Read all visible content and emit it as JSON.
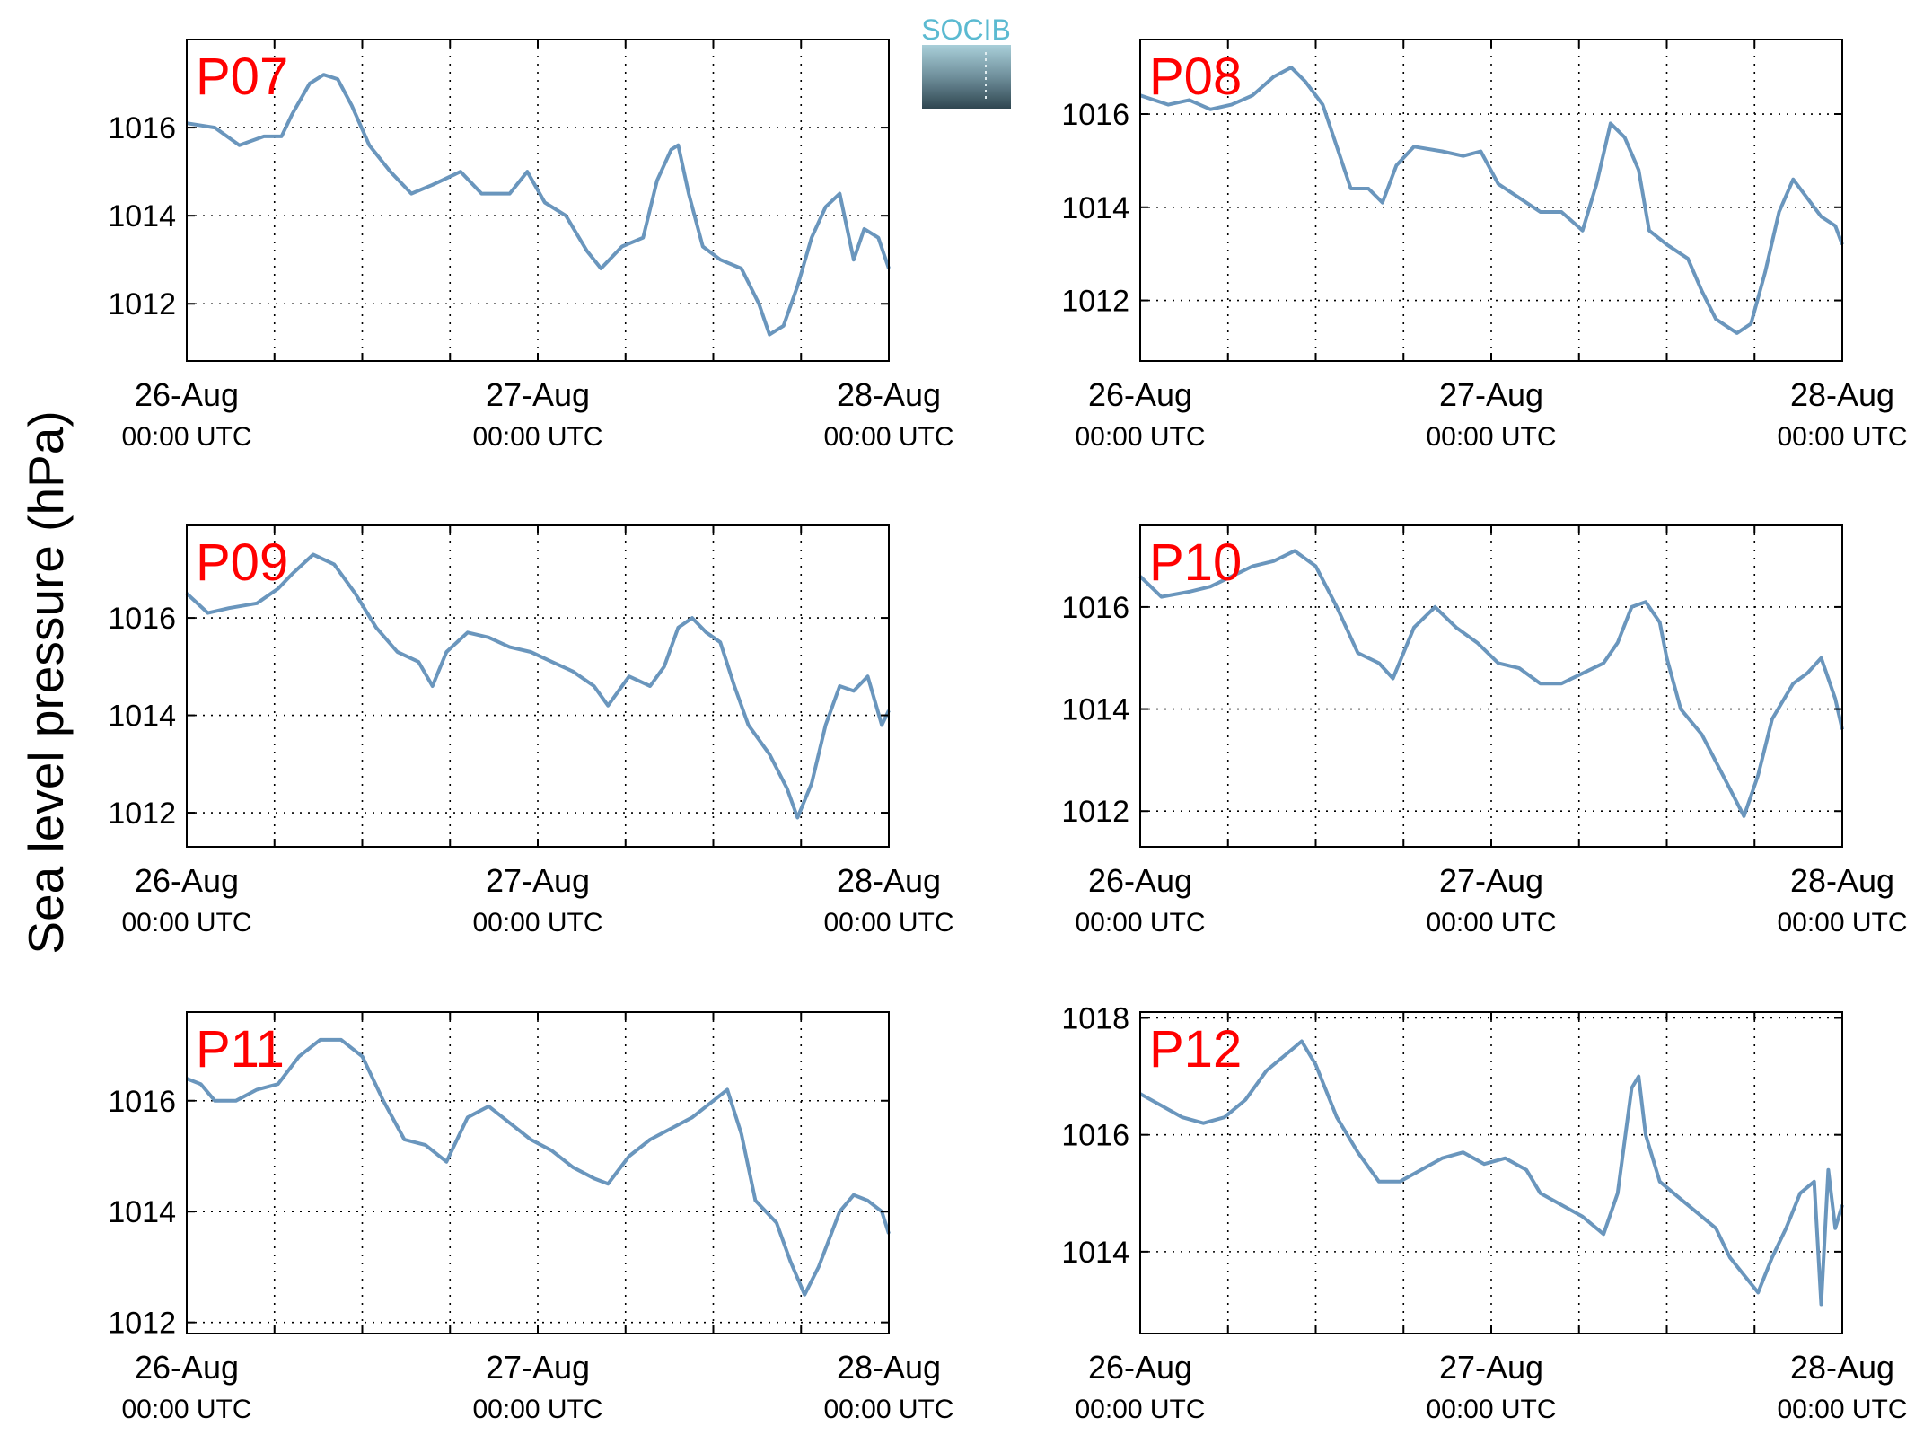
{
  "figure": {
    "ylabel": "Sea level pressure (hPa)",
    "logo_text": "SOCIB",
    "line_color": "#6a96bd",
    "panel_label_color": "#ff0000"
  },
  "chart_data": [
    {
      "type": "line",
      "panel": "P07",
      "x_ticks": [
        {
          "day": 0,
          "line1": "26-Aug",
          "line2": "00:00 UTC"
        },
        {
          "day": 1,
          "line1": "27-Aug",
          "line2": "00:00 UTC"
        },
        {
          "day": 2,
          "line1": "28-Aug",
          "line2": "00:00 UTC"
        }
      ],
      "xlim": [
        0,
        2
      ],
      "ylim": [
        1010.7,
        1018.0
      ],
      "yticks": [
        1012,
        1014,
        1016
      ],
      "grid": true,
      "points": [
        [
          0.0,
          1016.1
        ],
        [
          0.08,
          1016.0
        ],
        [
          0.15,
          1015.6
        ],
        [
          0.22,
          1015.8
        ],
        [
          0.27,
          1015.8
        ],
        [
          0.3,
          1016.3
        ],
        [
          0.35,
          1017.0
        ],
        [
          0.39,
          1017.2
        ],
        [
          0.43,
          1017.1
        ],
        [
          0.47,
          1016.5
        ],
        [
          0.52,
          1015.6
        ],
        [
          0.58,
          1015.0
        ],
        [
          0.64,
          1014.5
        ],
        [
          0.7,
          1014.7
        ],
        [
          0.78,
          1015.0
        ],
        [
          0.84,
          1014.5
        ],
        [
          0.92,
          1014.5
        ],
        [
          0.97,
          1015.0
        ],
        [
          1.02,
          1014.3
        ],
        [
          1.08,
          1014.0
        ],
        [
          1.14,
          1013.2
        ],
        [
          1.18,
          1012.8
        ],
        [
          1.24,
          1013.3
        ],
        [
          1.3,
          1013.5
        ],
        [
          1.34,
          1014.8
        ],
        [
          1.38,
          1015.5
        ],
        [
          1.4,
          1015.6
        ],
        [
          1.43,
          1014.5
        ],
        [
          1.47,
          1013.3
        ],
        [
          1.52,
          1013.0
        ],
        [
          1.58,
          1012.8
        ],
        [
          1.63,
          1012.0
        ],
        [
          1.66,
          1011.3
        ],
        [
          1.7,
          1011.5
        ],
        [
          1.74,
          1012.4
        ],
        [
          1.78,
          1013.5
        ],
        [
          1.82,
          1014.2
        ],
        [
          1.86,
          1014.5
        ],
        [
          1.9,
          1013.0
        ],
        [
          1.93,
          1013.7
        ],
        [
          1.97,
          1013.5
        ],
        [
          2.0,
          1012.8
        ]
      ]
    },
    {
      "type": "line",
      "panel": "P08",
      "x_ticks": [
        {
          "day": 0,
          "line1": "26-Aug",
          "line2": "00:00 UTC"
        },
        {
          "day": 1,
          "line1": "27-Aug",
          "line2": "00:00 UTC"
        },
        {
          "day": 2,
          "line1": "28-Aug",
          "line2": "00:00 UTC"
        }
      ],
      "xlim": [
        0,
        2
      ],
      "ylim": [
        1010.7,
        1017.6
      ],
      "yticks": [
        1012,
        1014,
        1016
      ],
      "grid": true,
      "points": [
        [
          0.0,
          1016.4
        ],
        [
          0.08,
          1016.2
        ],
        [
          0.14,
          1016.3
        ],
        [
          0.2,
          1016.1
        ],
        [
          0.26,
          1016.2
        ],
        [
          0.32,
          1016.4
        ],
        [
          0.38,
          1016.8
        ],
        [
          0.43,
          1017.0
        ],
        [
          0.47,
          1016.7
        ],
        [
          0.52,
          1016.2
        ],
        [
          0.56,
          1015.3
        ],
        [
          0.6,
          1014.4
        ],
        [
          0.65,
          1014.4
        ],
        [
          0.69,
          1014.1
        ],
        [
          0.73,
          1014.9
        ],
        [
          0.78,
          1015.3
        ],
        [
          0.86,
          1015.2
        ],
        [
          0.92,
          1015.1
        ],
        [
          0.97,
          1015.2
        ],
        [
          1.02,
          1014.5
        ],
        [
          1.08,
          1014.2
        ],
        [
          1.14,
          1013.9
        ],
        [
          1.2,
          1013.9
        ],
        [
          1.26,
          1013.5
        ],
        [
          1.3,
          1014.5
        ],
        [
          1.34,
          1015.8
        ],
        [
          1.38,
          1015.5
        ],
        [
          1.42,
          1014.8
        ],
        [
          1.45,
          1013.5
        ],
        [
          1.5,
          1013.2
        ],
        [
          1.56,
          1012.9
        ],
        [
          1.6,
          1012.2
        ],
        [
          1.64,
          1011.6
        ],
        [
          1.7,
          1011.3
        ],
        [
          1.74,
          1011.5
        ],
        [
          1.78,
          1012.6
        ],
        [
          1.82,
          1013.9
        ],
        [
          1.86,
          1014.6
        ],
        [
          1.9,
          1014.2
        ],
        [
          1.94,
          1013.8
        ],
        [
          1.98,
          1013.6
        ],
        [
          2.0,
          1013.2
        ]
      ]
    },
    {
      "type": "line",
      "panel": "P09",
      "x_ticks": [
        {
          "day": 0,
          "line1": "26-Aug",
          "line2": "00:00 UTC"
        },
        {
          "day": 1,
          "line1": "27-Aug",
          "line2": "00:00 UTC"
        },
        {
          "day": 2,
          "line1": "28-Aug",
          "line2": "00:00 UTC"
        }
      ],
      "xlim": [
        0,
        2
      ],
      "ylim": [
        1011.3,
        1017.9
      ],
      "yticks": [
        1012,
        1014,
        1016
      ],
      "grid": true,
      "points": [
        [
          0.0,
          1016.5
        ],
        [
          0.06,
          1016.1
        ],
        [
          0.12,
          1016.2
        ],
        [
          0.2,
          1016.3
        ],
        [
          0.26,
          1016.6
        ],
        [
          0.3,
          1016.9
        ],
        [
          0.36,
          1017.3
        ],
        [
          0.42,
          1017.1
        ],
        [
          0.48,
          1016.5
        ],
        [
          0.54,
          1015.8
        ],
        [
          0.6,
          1015.3
        ],
        [
          0.66,
          1015.1
        ],
        [
          0.7,
          1014.6
        ],
        [
          0.74,
          1015.3
        ],
        [
          0.8,
          1015.7
        ],
        [
          0.86,
          1015.6
        ],
        [
          0.92,
          1015.4
        ],
        [
          0.98,
          1015.3
        ],
        [
          1.04,
          1015.1
        ],
        [
          1.1,
          1014.9
        ],
        [
          1.16,
          1014.6
        ],
        [
          1.2,
          1014.2
        ],
        [
          1.26,
          1014.8
        ],
        [
          1.32,
          1014.6
        ],
        [
          1.36,
          1015.0
        ],
        [
          1.4,
          1015.8
        ],
        [
          1.44,
          1016.0
        ],
        [
          1.48,
          1015.7
        ],
        [
          1.52,
          1015.5
        ],
        [
          1.56,
          1014.6
        ],
        [
          1.6,
          1013.8
        ],
        [
          1.66,
          1013.2
        ],
        [
          1.71,
          1012.5
        ],
        [
          1.74,
          1011.9
        ],
        [
          1.78,
          1012.6
        ],
        [
          1.82,
          1013.8
        ],
        [
          1.86,
          1014.6
        ],
        [
          1.9,
          1014.5
        ],
        [
          1.94,
          1014.8
        ],
        [
          1.98,
          1013.8
        ],
        [
          2.0,
          1014.1
        ]
      ]
    },
    {
      "type": "line",
      "panel": "P10",
      "x_ticks": [
        {
          "day": 0,
          "line1": "26-Aug",
          "line2": "00:00 UTC"
        },
        {
          "day": 1,
          "line1": "27-Aug",
          "line2": "00:00 UTC"
        },
        {
          "day": 2,
          "line1": "28-Aug",
          "line2": "00:00 UTC"
        }
      ],
      "xlim": [
        0,
        2
      ],
      "ylim": [
        1011.3,
        1017.6
      ],
      "yticks": [
        1012,
        1014,
        1016
      ],
      "grid": true,
      "points": [
        [
          0.0,
          1016.6
        ],
        [
          0.06,
          1016.2
        ],
        [
          0.14,
          1016.3
        ],
        [
          0.2,
          1016.4
        ],
        [
          0.26,
          1016.6
        ],
        [
          0.32,
          1016.8
        ],
        [
          0.38,
          1016.9
        ],
        [
          0.44,
          1017.1
        ],
        [
          0.5,
          1016.8
        ],
        [
          0.56,
          1016.0
        ],
        [
          0.62,
          1015.1
        ],
        [
          0.68,
          1014.9
        ],
        [
          0.72,
          1014.6
        ],
        [
          0.78,
          1015.6
        ],
        [
          0.84,
          1016.0
        ],
        [
          0.9,
          1015.6
        ],
        [
          0.96,
          1015.3
        ],
        [
          1.02,
          1014.9
        ],
        [
          1.08,
          1014.8
        ],
        [
          1.14,
          1014.5
        ],
        [
          1.2,
          1014.5
        ],
        [
          1.26,
          1014.7
        ],
        [
          1.32,
          1014.9
        ],
        [
          1.36,
          1015.3
        ],
        [
          1.4,
          1016.0
        ],
        [
          1.44,
          1016.1
        ],
        [
          1.48,
          1015.7
        ],
        [
          1.5,
          1015.0
        ],
        [
          1.54,
          1014.0
        ],
        [
          1.6,
          1013.5
        ],
        [
          1.66,
          1012.7
        ],
        [
          1.72,
          1011.9
        ],
        [
          1.76,
          1012.7
        ],
        [
          1.8,
          1013.8
        ],
        [
          1.86,
          1014.5
        ],
        [
          1.9,
          1014.7
        ],
        [
          1.94,
          1015.0
        ],
        [
          1.98,
          1014.2
        ],
        [
          2.0,
          1013.6
        ]
      ]
    },
    {
      "type": "line",
      "panel": "P11",
      "x_ticks": [
        {
          "day": 0,
          "line1": "26-Aug",
          "line2": "00:00 UTC"
        },
        {
          "day": 1,
          "line1": "27-Aug",
          "line2": "00:00 UTC"
        },
        {
          "day": 2,
          "line1": "28-Aug",
          "line2": "00:00 UTC"
        }
      ],
      "xlim": [
        0,
        2
      ],
      "ylim": [
        1011.8,
        1017.6
      ],
      "yticks": [
        1012,
        1014,
        1016
      ],
      "grid": true,
      "points": [
        [
          0.0,
          1016.4
        ],
        [
          0.04,
          1016.3
        ],
        [
          0.08,
          1016.0
        ],
        [
          0.14,
          1016.0
        ],
        [
          0.2,
          1016.2
        ],
        [
          0.26,
          1016.3
        ],
        [
          0.32,
          1016.8
        ],
        [
          0.38,
          1017.1
        ],
        [
          0.44,
          1017.1
        ],
        [
          0.5,
          1016.8
        ],
        [
          0.56,
          1016.0
        ],
        [
          0.62,
          1015.3
        ],
        [
          0.68,
          1015.2
        ],
        [
          0.74,
          1014.9
        ],
        [
          0.8,
          1015.7
        ],
        [
          0.86,
          1015.9
        ],
        [
          0.92,
          1015.6
        ],
        [
          0.98,
          1015.3
        ],
        [
          1.04,
          1015.1
        ],
        [
          1.1,
          1014.8
        ],
        [
          1.16,
          1014.6
        ],
        [
          1.2,
          1014.5
        ],
        [
          1.26,
          1015.0
        ],
        [
          1.32,
          1015.3
        ],
        [
          1.38,
          1015.5
        ],
        [
          1.44,
          1015.7
        ],
        [
          1.5,
          1016.0
        ],
        [
          1.54,
          1016.2
        ],
        [
          1.58,
          1015.4
        ],
        [
          1.62,
          1014.2
        ],
        [
          1.68,
          1013.8
        ],
        [
          1.72,
          1013.1
        ],
        [
          1.76,
          1012.5
        ],
        [
          1.8,
          1013.0
        ],
        [
          1.86,
          1014.0
        ],
        [
          1.9,
          1014.3
        ],
        [
          1.94,
          1014.2
        ],
        [
          1.98,
          1014.0
        ],
        [
          2.0,
          1013.6
        ]
      ]
    },
    {
      "type": "line",
      "panel": "P12",
      "x_ticks": [
        {
          "day": 0,
          "line1": "26-Aug",
          "line2": "00:00 UTC"
        },
        {
          "day": 1,
          "line1": "27-Aug",
          "line2": "00:00 UTC"
        },
        {
          "day": 2,
          "line1": "28-Aug",
          "line2": "00:00 UTC"
        }
      ],
      "xlim": [
        0,
        2
      ],
      "ylim": [
        1012.6,
        1018.1
      ],
      "yticks": [
        1014,
        1016,
        1018
      ],
      "grid": true,
      "points": [
        [
          0.0,
          1016.7
        ],
        [
          0.06,
          1016.5
        ],
        [
          0.12,
          1016.3
        ],
        [
          0.18,
          1016.2
        ],
        [
          0.24,
          1016.3
        ],
        [
          0.3,
          1016.6
        ],
        [
          0.36,
          1017.1
        ],
        [
          0.42,
          1017.4
        ],
        [
          0.46,
          1017.6
        ],
        [
          0.5,
          1017.2
        ],
        [
          0.56,
          1016.3
        ],
        [
          0.62,
          1015.7
        ],
        [
          0.68,
          1015.2
        ],
        [
          0.74,
          1015.2
        ],
        [
          0.8,
          1015.4
        ],
        [
          0.86,
          1015.6
        ],
        [
          0.92,
          1015.7
        ],
        [
          0.98,
          1015.5
        ],
        [
          1.04,
          1015.6
        ],
        [
          1.1,
          1015.4
        ],
        [
          1.14,
          1015.0
        ],
        [
          1.2,
          1014.8
        ],
        [
          1.26,
          1014.6
        ],
        [
          1.32,
          1014.3
        ],
        [
          1.36,
          1015.0
        ],
        [
          1.4,
          1016.8
        ],
        [
          1.42,
          1017.0
        ],
        [
          1.44,
          1016.0
        ],
        [
          1.48,
          1015.2
        ],
        [
          1.54,
          1014.9
        ],
        [
          1.58,
          1014.7
        ],
        [
          1.64,
          1014.4
        ],
        [
          1.68,
          1013.9
        ],
        [
          1.72,
          1013.6
        ],
        [
          1.76,
          1013.3
        ],
        [
          1.8,
          1013.9
        ],
        [
          1.84,
          1014.4
        ],
        [
          1.88,
          1015.0
        ],
        [
          1.92,
          1015.2
        ],
        [
          1.94,
          1013.1
        ],
        [
          1.96,
          1015.4
        ],
        [
          1.98,
          1014.4
        ],
        [
          2.0,
          1014.8
        ]
      ]
    }
  ]
}
